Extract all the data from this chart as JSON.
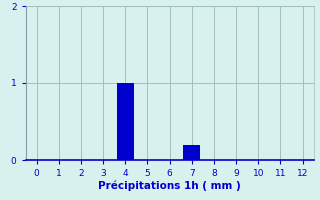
{
  "categories": [
    0,
    1,
    2,
    3,
    4,
    5,
    6,
    7,
    8,
    9,
    10,
    11,
    12
  ],
  "values": [
    0,
    0,
    0,
    0,
    1.0,
    0,
    0,
    0.2,
    0,
    0,
    0,
    0,
    0
  ],
  "bar_color": "#0000cc",
  "background_color": "#d8f0ee",
  "xlabel": "Précipitations 1h ( mm )",
  "xlim": [
    -0.5,
    12.5
  ],
  "ylim": [
    0,
    2
  ],
  "yticks": [
    0,
    1,
    2
  ],
  "xticks": [
    0,
    1,
    2,
    3,
    4,
    5,
    6,
    7,
    8,
    9,
    10,
    11,
    12
  ],
  "grid_color": "#a0bfbf",
  "spine_color_bottom": "#0000cc",
  "spine_color_left": "#8899aa",
  "tick_color": "#0000cc",
  "label_color": "#0000cc",
  "bar_width": 0.75,
  "tick_labelsize": 6.5,
  "xlabel_fontsize": 7.5
}
